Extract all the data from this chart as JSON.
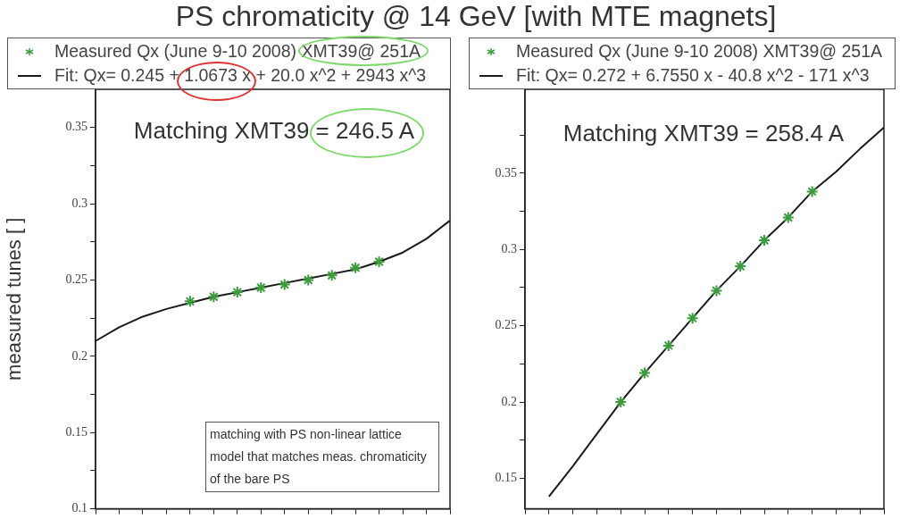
{
  "chart_data": [
    {
      "type": "line",
      "title": "PS chromaticity @ 14 GeV [with MTE magnets]",
      "ylabel": "measured tunes [ ]",
      "categories": [
        null,
        null,
        null,
        null,
        null,
        null,
        null,
        null,
        null,
        null,
        null,
        null,
        null,
        null,
        null,
        null
      ],
      "series": [
        {
          "name": "Measured Qx (June 9-10 2008) XMT39@ 251A",
          "type": "scatter",
          "marker": "cross",
          "color": "#3c9c3c",
          "values": [
            null,
            null,
            null,
            null,
            0.236,
            0.239,
            0.242,
            0.245,
            0.247,
            0.25,
            0.253,
            0.258,
            0.262,
            null,
            null,
            null
          ]
        },
        {
          "name": "Fit: Qx= 0.245 + 1.0673 x + 20.0 x^2 + 2943 x^3",
          "type": "line",
          "marker": "none",
          "color": "#1a1a1a",
          "values": [
            0.21,
            0.219,
            0.226,
            0.231,
            0.235,
            0.239,
            0.242,
            0.245,
            0.248,
            0.251,
            0.254,
            0.257,
            0.262,
            0.268,
            0.277,
            0.289
          ]
        }
      ],
      "ylim": [
        0.1,
        0.375
      ],
      "yticks": [
        0.1,
        {
          "value": 0.125,
          "label": null
        },
        0.15,
        {
          "value": 0.175,
          "label": null
        },
        0.2,
        {
          "value": 0.225,
          "label": null
        },
        0.25,
        {
          "value": 0.275,
          "label": null
        },
        0.3,
        {
          "value": 0.325,
          "label": null
        },
        0.35
      ],
      "tick_labels": "y",
      "legend": "top",
      "annotations": [
        "Matching XMT39 = 246.5 A",
        "matching with PS non-linear lattice model that matches meas. chromaticity of the bare PS"
      ]
    },
    {
      "type": "line",
      "categories": [
        null,
        null,
        null,
        null,
        null,
        null,
        null,
        null,
        null,
        null,
        null,
        null,
        null,
        null,
        null,
        null
      ],
      "series": [
        {
          "name": "Measured Qx (June 9-10 2008) XMT39@ 251A",
          "type": "scatter",
          "marker": "cross",
          "color": "#3c9c3c",
          "values": [
            null,
            null,
            null,
            null,
            0.2,
            0.219,
            0.237,
            0.255,
            0.273,
            0.289,
            0.306,
            0.321,
            0.338,
            null,
            null,
            null
          ]
        },
        {
          "name": "Fit: Qx= 0.272 + 6.7550 x - 40.8 x^2 - 171 x^3",
          "type": "line",
          "marker": "none",
          "color": "#1a1a1a",
          "values": [
            null,
            0.138,
            0.158,
            0.179,
            0.2,
            0.219,
            0.237,
            0.255,
            0.273,
            0.289,
            0.306,
            0.321,
            0.338,
            0.351,
            0.366,
            0.38
          ]
        }
      ],
      "ylim": [
        0.13,
        0.405
      ],
      "yticks": [
        0.15,
        {
          "value": 0.175,
          "label": null
        },
        0.2,
        {
          "value": 0.225,
          "label": null
        },
        0.25,
        {
          "value": 0.275,
          "label": null
        },
        0.3,
        {
          "value": 0.325,
          "label": null
        },
        0.35,
        {
          "value": 0.375,
          "label": null
        }
      ],
      "tick_labels": "y",
      "legend": "top",
      "annotations": [
        "Matching XMT39 = 258.4 A"
      ]
    }
  ]
}
